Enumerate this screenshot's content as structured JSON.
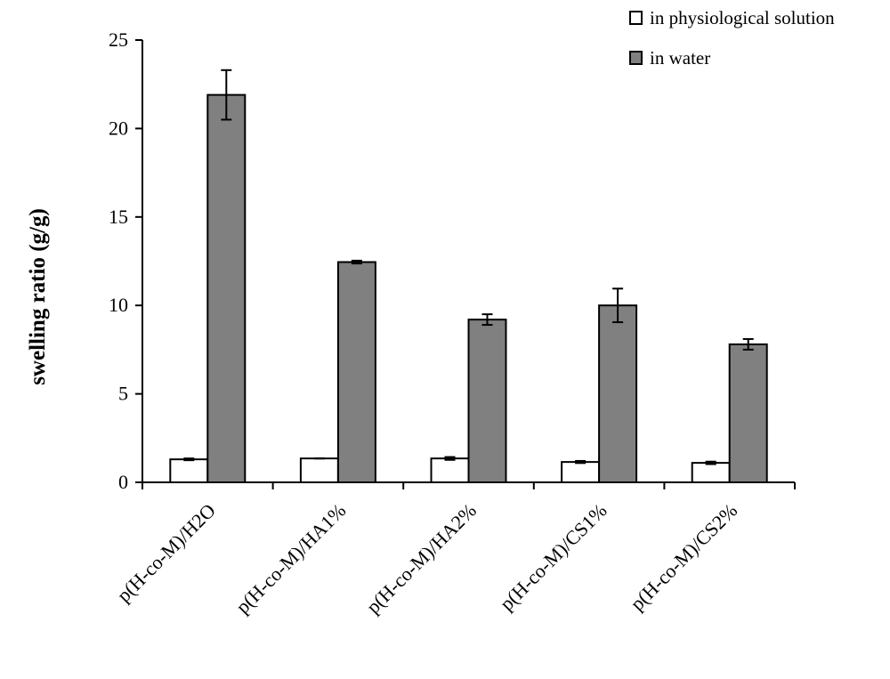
{
  "chart_data": {
    "type": "bar",
    "title": "",
    "xlabel": "",
    "ylabel": "swelling ratio (g/g)",
    "ylim": [
      0,
      25
    ],
    "yticks": [
      0,
      5,
      10,
      15,
      20,
      25
    ],
    "grid": false,
    "legend_position": "top-right",
    "categories": [
      "p(H-co-M)/H2O",
      "p(H-co-M)/HA1%",
      "p(H-co-M)/HA2%",
      "p(H-co-M)/CS1%",
      "p(H-co-M)/CS2%"
    ],
    "series": [
      {
        "name": "in physiological solution",
        "color": "#ffffff",
        "values": [
          1.3,
          1.35,
          1.35,
          1.15,
          1.1
        ],
        "errors": [
          0.05,
          0.0,
          0.08,
          0.06,
          0.07
        ]
      },
      {
        "name": "in water",
        "color": "#808080",
        "values": [
          21.9,
          12.45,
          9.2,
          10.0,
          7.8
        ],
        "errors": [
          1.4,
          0.08,
          0.3,
          0.95,
          0.3
        ]
      }
    ]
  }
}
